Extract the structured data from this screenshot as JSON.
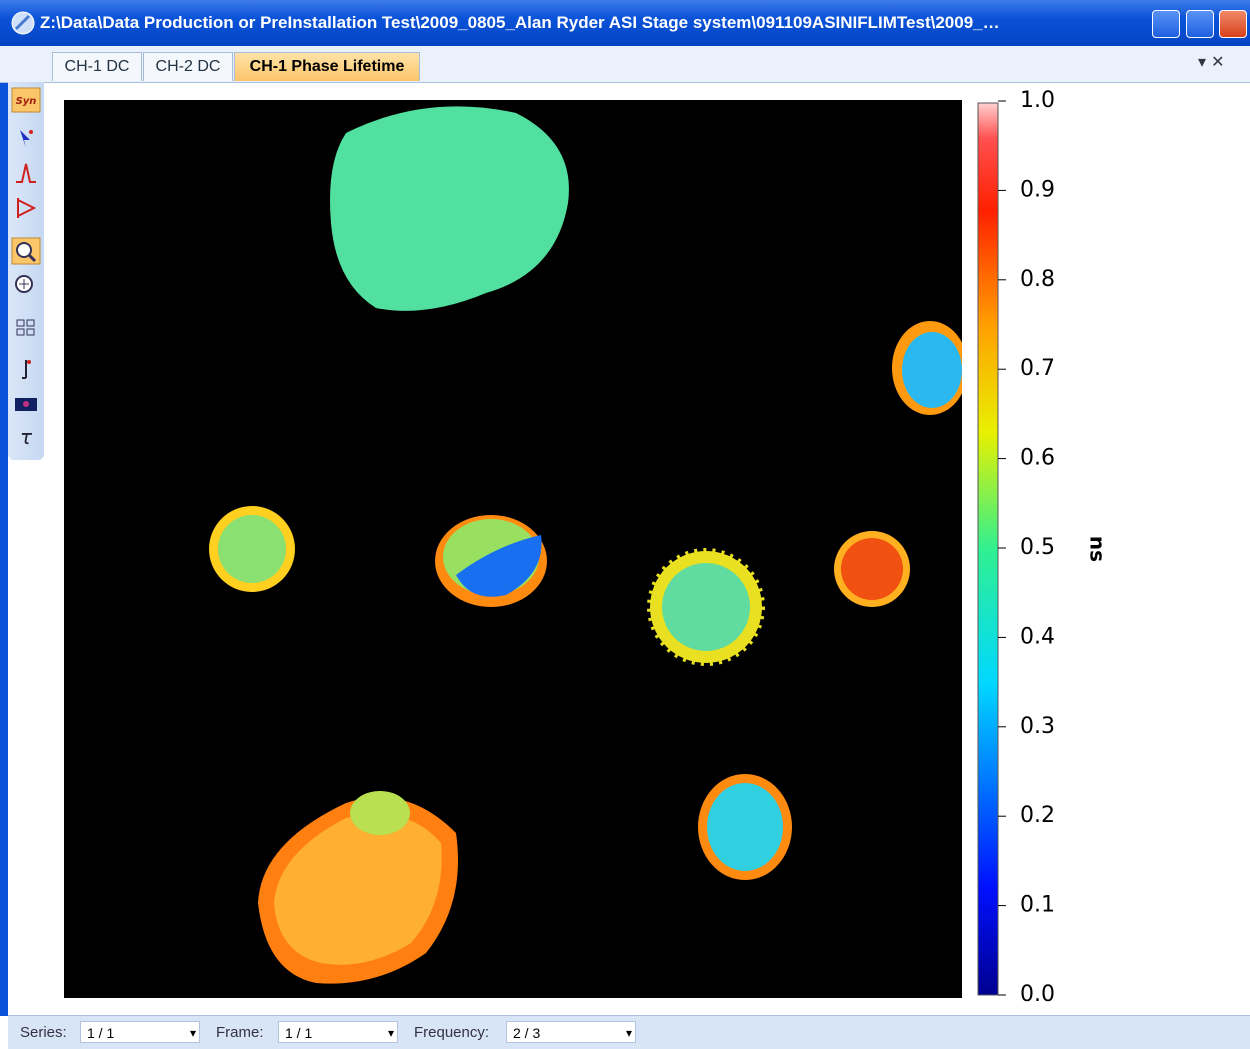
{
  "window": {
    "title": "Z:\\Data\\Data Production or PreInstallation Test\\2009_0805_Alan Ryder ASI Stage system\\091109ASINIFLIMTest\\2009_…"
  },
  "tabs": [
    "CH-1 DC",
    "CH-2 DC",
    "CH-1 Phase Lifetime"
  ],
  "toolbar": {
    "sync": "Syn",
    "tau": "τ"
  },
  "colorbar": {
    "lim": [
      0,
      1
    ],
    "unit": "ns",
    "ticks": [
      {
        "value": 0,
        "label": "0.0"
      },
      0.1,
      0.2,
      0.3,
      0.4,
      0.5,
      0.6,
      0.7,
      0.8,
      0.9,
      {
        "value": 1,
        "label": "1.0"
      }
    ]
  },
  "status": [
    {
      "label": "Series:",
      "value": "1 / 1"
    },
    {
      "label": "Frame:",
      "value": "1 / 1"
    },
    {
      "label": "Frequency:",
      "value": "2 / 3"
    }
  ]
}
